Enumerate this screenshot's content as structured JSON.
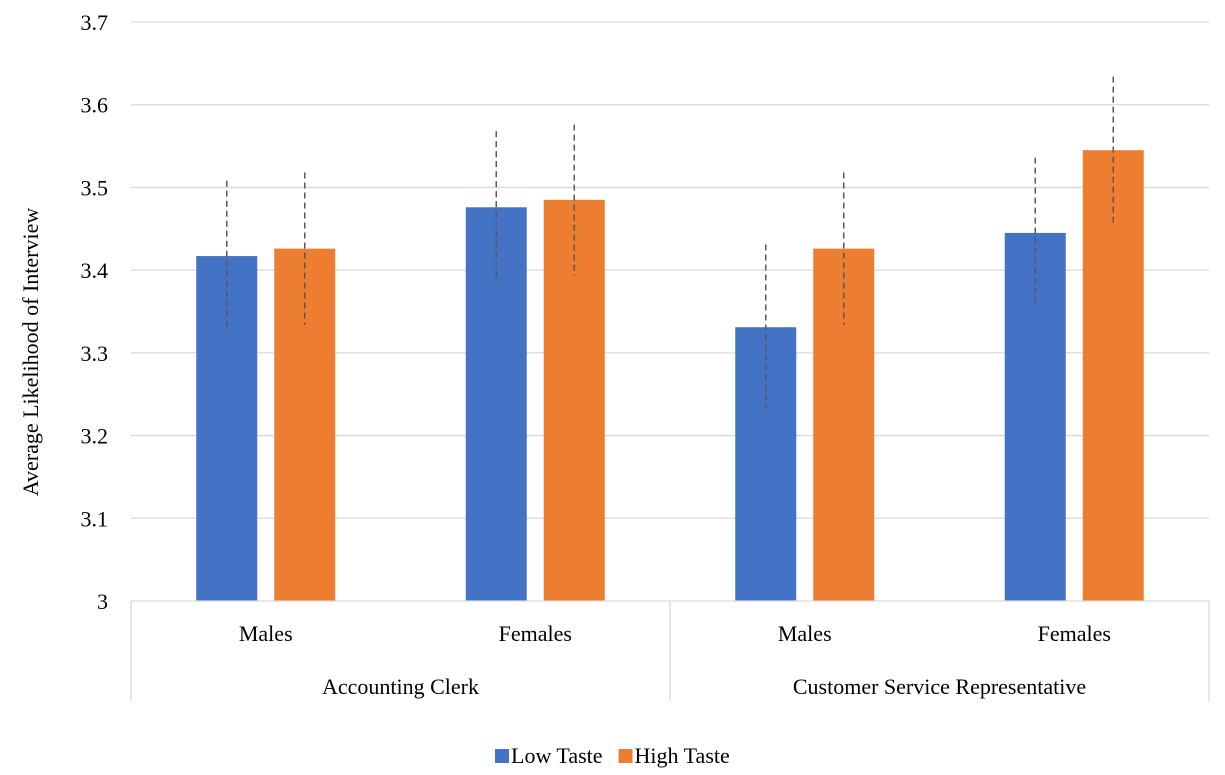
{
  "chart_data": {
    "type": "bar",
    "title": "",
    "ylabel": "Average Likelihood of Interview",
    "xlabel": "",
    "ylim": [
      3.0,
      3.7
    ],
    "yticks": [
      "3",
      "3.1",
      "3.2",
      "3.3",
      "3.4",
      "3.5",
      "3.6",
      "3.7"
    ],
    "grid": true,
    "legend_position": "bottom",
    "categories": [
      "Males",
      "Females",
      "Males",
      "Females"
    ],
    "groups": [
      {
        "label": "Accounting Clerk",
        "categories": [
          "Males",
          "Females"
        ]
      },
      {
        "label": "Customer Service Representative",
        "categories": [
          "Males",
          "Females"
        ]
      }
    ],
    "series": [
      {
        "name": "Low Taste",
        "color": "#4472C4",
        "values": [
          3.417,
          3.476,
          3.331,
          3.445
        ],
        "error_low": [
          3.325,
          3.385,
          3.232,
          3.355
        ],
        "error_high": [
          3.508,
          3.568,
          3.431,
          3.536
        ]
      },
      {
        "name": "High Taste",
        "color": "#ED7D31",
        "values": [
          3.426,
          3.485,
          3.426,
          3.545
        ],
        "error_low": [
          3.334,
          3.393,
          3.334,
          3.455
        ],
        "error_high": [
          3.518,
          3.576,
          3.518,
          3.634
        ]
      }
    ]
  }
}
